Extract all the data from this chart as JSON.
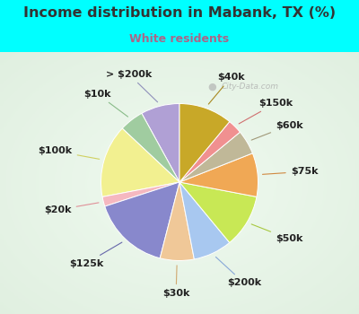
{
  "title": "Income distribution in Mabank, TX (%)",
  "subtitle": "White residents",
  "title_color": "#333333",
  "subtitle_color": "#aa6688",
  "bg_color": "#00ffff",
  "chart_bg_center": "#e8f5ee",
  "chart_bg_edge": "#c8eedd",
  "watermark": "City-Data.com",
  "labels": [
    "> $200k",
    "$10k",
    "$100k",
    "$20k",
    "$125k",
    "$30k",
    "$200k",
    "$50k",
    "$75k",
    "$60k",
    "$150k",
    "$40k"
  ],
  "values": [
    8,
    5,
    15,
    2,
    16,
    7,
    8,
    11,
    9,
    5,
    3,
    11
  ],
  "colors": [
    "#b0a0d5",
    "#a0cca0",
    "#f2f090",
    "#f5b8c0",
    "#8888cc",
    "#f0c898",
    "#a8c8f0",
    "#c8e855",
    "#f0a855",
    "#c0b898",
    "#f09090",
    "#c8a828"
  ],
  "label_fontsize": 8,
  "startangle": 90,
  "line_colors": [
    "#9090bb",
    "#88bb88",
    "#d0d060",
    "#e09098",
    "#6666aa",
    "#d0a870",
    "#88a8d8",
    "#a8c840",
    "#d08840",
    "#a09878",
    "#d07070",
    "#a88820"
  ]
}
